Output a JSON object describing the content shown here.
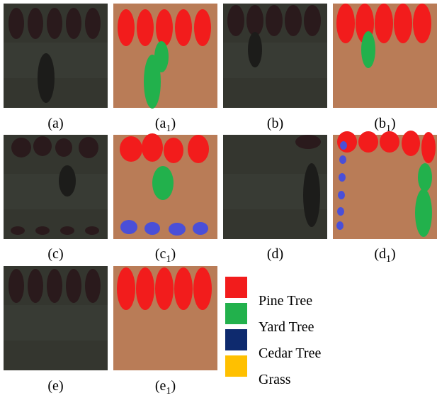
{
  "panels": [
    {
      "label": {
        "prefix": "(a",
        "suffix": ")"
      }
    },
    {
      "label": {
        "prefix": "(a",
        "sub": "1",
        "suffix": ")"
      }
    },
    {
      "label": {
        "prefix": "(b",
        "suffix": ")"
      }
    },
    {
      "label": {
        "prefix": "(b",
        "sub": "1",
        "suffix": ")"
      }
    },
    {
      "label": {
        "prefix": "(c",
        "suffix": ")"
      }
    },
    {
      "label": {
        "prefix": "(c",
        "sub": "1",
        "suffix": ")"
      }
    },
    {
      "label": {
        "prefix": "(d",
        "suffix": ")"
      }
    },
    {
      "label": {
        "prefix": "(d",
        "sub": "1",
        "suffix": ")"
      }
    },
    {
      "label": {
        "prefix": "(e",
        "suffix": ")"
      }
    },
    {
      "label": {
        "prefix": "(e",
        "sub": "1",
        "suffix": ")"
      }
    }
  ],
  "legend": [
    {
      "name": "Pine Tree",
      "color": "#f21c1c"
    },
    {
      "name": "Yard Tree",
      "color": "#22b14c"
    },
    {
      "name": "Cedar Tree",
      "color": "#0e2a6e"
    },
    {
      "name": "Grass",
      "color": "#ffc000"
    }
  ]
}
